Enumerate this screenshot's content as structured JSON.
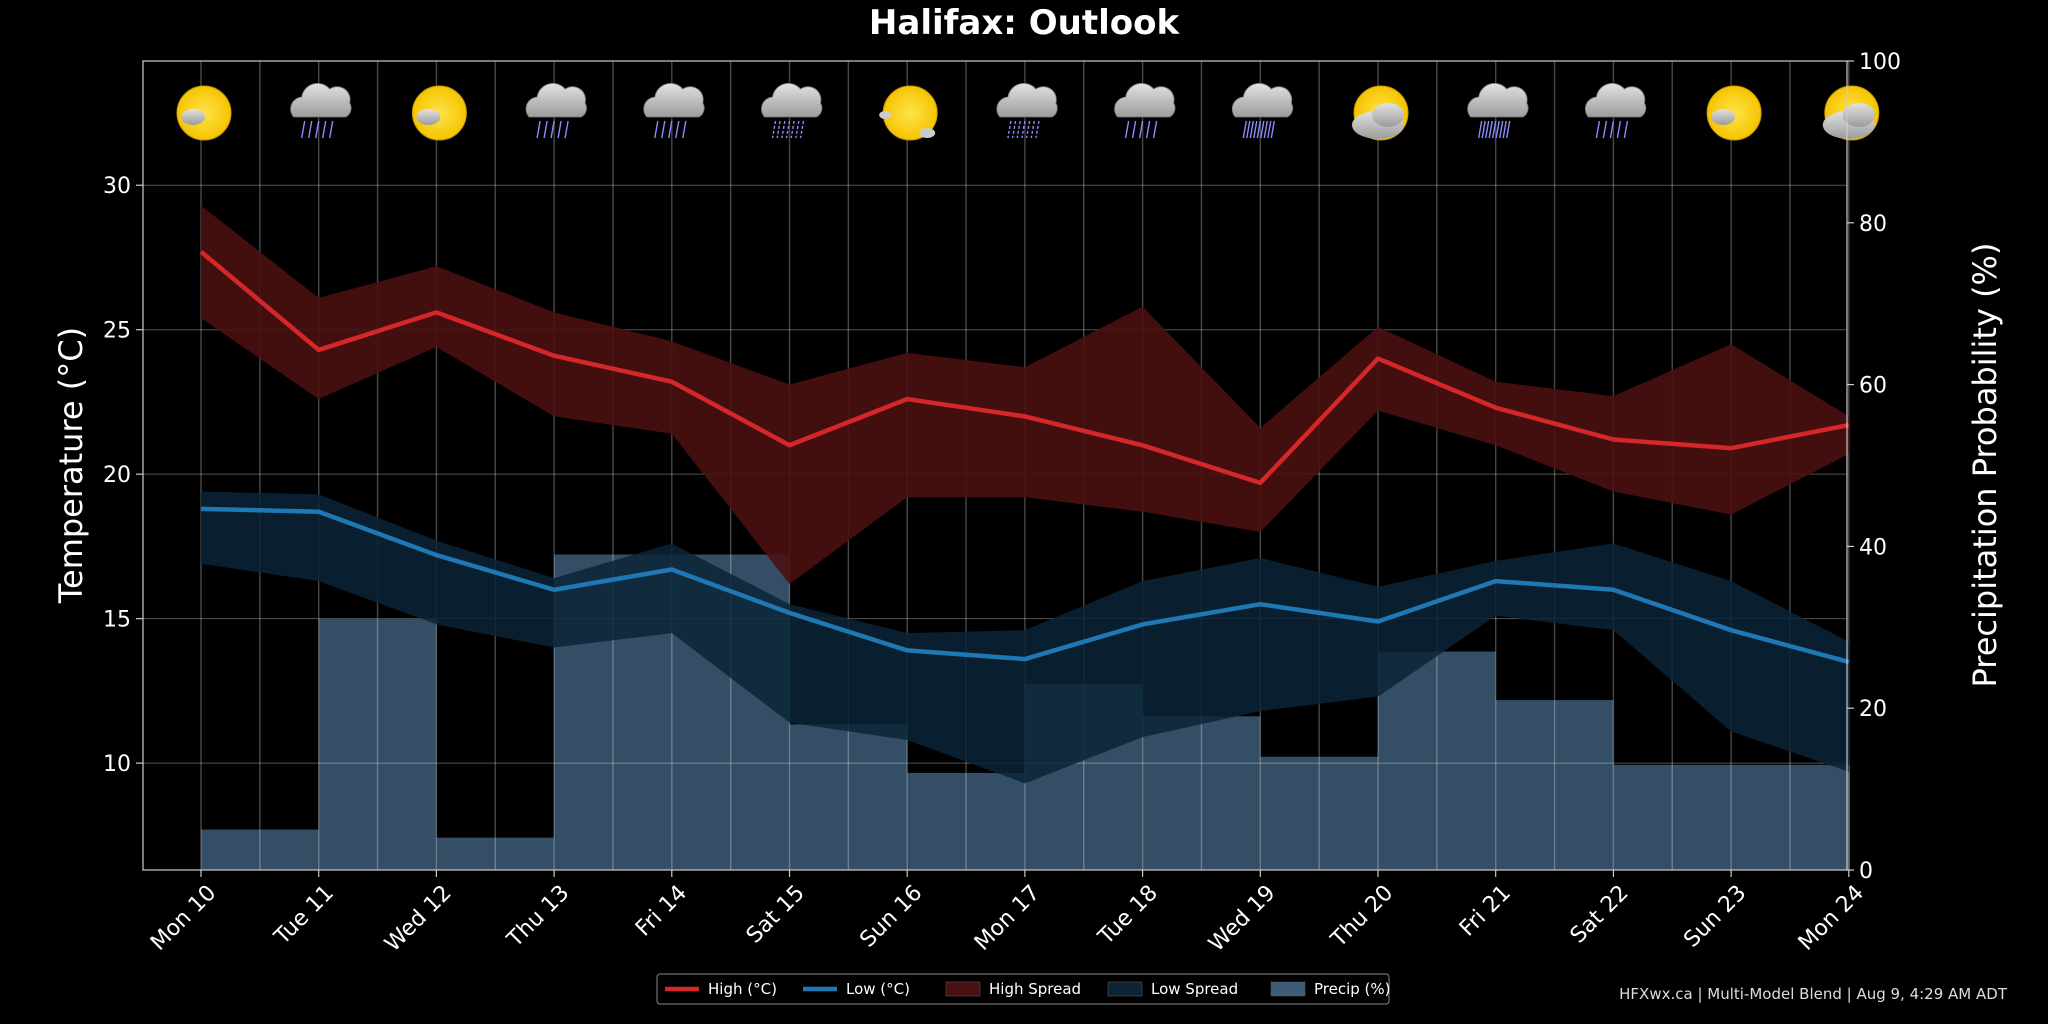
{
  "chart_data": {
    "type": "line",
    "title": "Halifax: Outlook",
    "ylabel": "Temperature (°C)",
    "y2label": "Precipitation Probability (%)",
    "ylim": [
      6.3,
      34.3
    ],
    "y2lim": [
      0,
      100
    ],
    "yticks": [
      10,
      15,
      20,
      25,
      30
    ],
    "y2ticks": [
      0,
      20,
      40,
      60,
      80,
      100
    ],
    "grid": true,
    "legend_position": "bottom-center",
    "categories": [
      "Mon 10",
      "Tue 11",
      "Wed 12",
      "Thu 13",
      "Fri 14",
      "Sat 15",
      "Sun 16",
      "Mon 17",
      "Tue 18",
      "Wed 19",
      "Thu 20",
      "Fri 21",
      "Sat 22",
      "Sun 23",
      "Mon 24"
    ],
    "weather_icons": [
      "sun-cloud-icon",
      "rain-cloud-icon",
      "sun-cloud-icon",
      "rain-cloud-icon",
      "rain-cloud-icon",
      "drizzle-cloud-icon",
      "sun-icon",
      "drizzle-cloud-icon",
      "rain-cloud-icon",
      "heavy-rain-cloud-icon",
      "cloud-sun-icon",
      "heavy-rain-cloud-icon",
      "rain-cloud-icon",
      "sun-cloud-icon",
      "cloud-sun-icon"
    ],
    "series": [
      {
        "name": "High (°C)",
        "color": "#d62728",
        "values": [
          27.7,
          24.3,
          25.6,
          24.1,
          23.2,
          21.0,
          22.6,
          22.0,
          21.0,
          19.7,
          24.0,
          22.3,
          21.2,
          20.9,
          21.7
        ]
      },
      {
        "name": "Low (°C)",
        "color": "#1f77b4",
        "values": [
          18.8,
          18.7,
          17.2,
          16.0,
          16.7,
          15.2,
          13.9,
          13.6,
          14.8,
          15.5,
          14.9,
          16.3,
          16.0,
          14.6,
          13.5
        ]
      },
      {
        "name": "High Spread",
        "color": "#4a0f10",
        "upper": [
          29.3,
          26.1,
          27.2,
          25.6,
          24.6,
          23.1,
          24.2,
          23.7,
          25.8,
          21.6,
          25.1,
          23.2,
          22.7,
          24.5,
          22.0
        ],
        "lower": [
          25.4,
          22.6,
          24.4,
          22.0,
          21.4,
          16.2,
          19.2,
          19.2,
          18.7,
          18.0,
          22.2,
          21.0,
          19.4,
          18.6,
          20.7
        ]
      },
      {
        "name": "Low Spread",
        "color": "#0b2537",
        "upper": [
          19.4,
          19.3,
          17.7,
          16.4,
          17.6,
          15.5,
          14.5,
          14.6,
          16.3,
          17.1,
          16.1,
          17.0,
          17.6,
          16.3,
          14.2
        ],
        "lower": [
          16.9,
          16.3,
          14.8,
          14.0,
          14.5,
          11.4,
          10.8,
          9.3,
          10.9,
          11.8,
          12.3,
          15.1,
          14.6,
          11.1,
          9.7
        ]
      },
      {
        "name": "Precip (%)",
        "color": "#3d5c78",
        "values": [
          5,
          31,
          4,
          39,
          39,
          18,
          12,
          23,
          19,
          14,
          27,
          21,
          13,
          13,
          13
        ]
      }
    ]
  },
  "legend": [
    {
      "label": "High (°C)",
      "kind": "line",
      "color": "#d62728"
    },
    {
      "label": "Low (°C)",
      "kind": "line",
      "color": "#1f77b4"
    },
    {
      "label": "High Spread",
      "kind": "patch",
      "color": "#4a0f10"
    },
    {
      "label": "Low Spread",
      "kind": "patch",
      "color": "#0b2537"
    },
    {
      "label": "Precip (%)",
      "kind": "patch",
      "color": "#3d5c78"
    }
  ],
  "footer": "HFXwx.ca | Multi-Model Blend | Aug 9, 4:29 AM ADT"
}
